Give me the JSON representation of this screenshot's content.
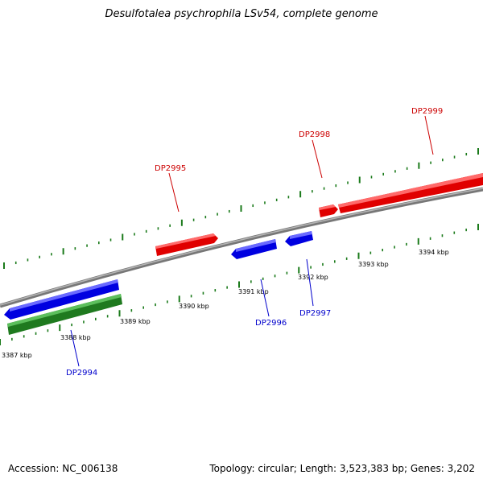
{
  "title": "Desulfotalea psychrophila LSv54, complete genome",
  "footer": {
    "accession": "Accession: NC_006138",
    "summary": "Topology: circular; Length: 3,523,383 bp; Genes: 3,202"
  },
  "colors": {
    "forward_gene": "#ff0000",
    "reverse_gene": "#0000ff",
    "rna_gene": "#228b22",
    "backbone": "#888888",
    "tick": "#1a7a1a",
    "forward_label": "#cc0000",
    "reverse_label": "#0000cc"
  },
  "scale_labels": [
    "3387 kbp",
    "3388 kbp",
    "3389 kbp",
    "3390 kbp",
    "3391 kbp",
    "3392 kbp",
    "3393 kbp",
    "3394 kbp"
  ],
  "genes": {
    "forward": [
      "DP2995",
      "DP2998",
      "DP2999"
    ],
    "reverse": [
      "DP2994",
      "DP2996",
      "DP2997"
    ]
  }
}
